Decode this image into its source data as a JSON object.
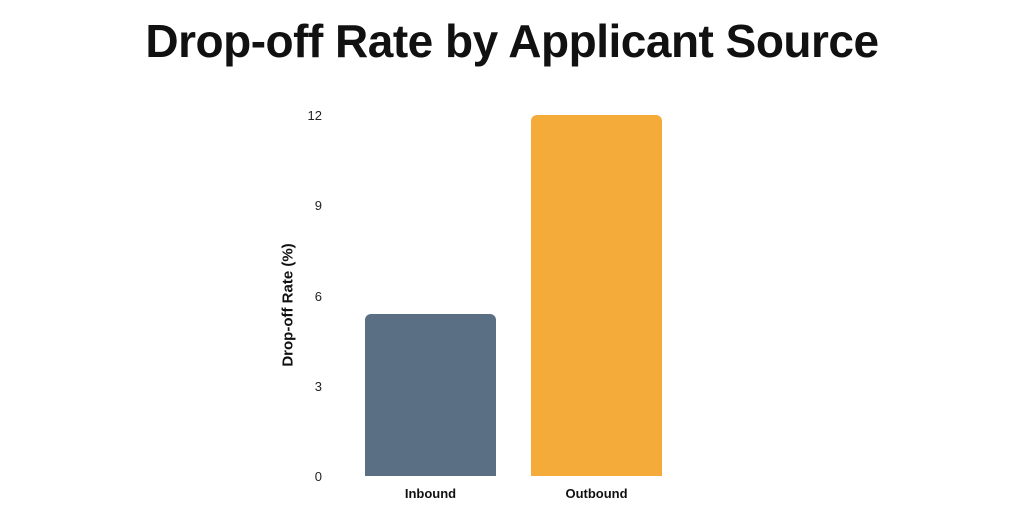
{
  "chart_data": {
    "type": "bar",
    "title": "Drop-off Rate by Applicant Source",
    "xlabel": "",
    "ylabel": "Drop-off Rate (%)",
    "categories": [
      "Inbound",
      "Outbound"
    ],
    "values": [
      5.4,
      12.0
    ],
    "colors": [
      "#5a6e84",
      "#f4ab39"
    ],
    "yticks": [
      0,
      3,
      6,
      9,
      12
    ],
    "ylim": [
      0,
      12
    ],
    "grid": false,
    "legend": null
  }
}
